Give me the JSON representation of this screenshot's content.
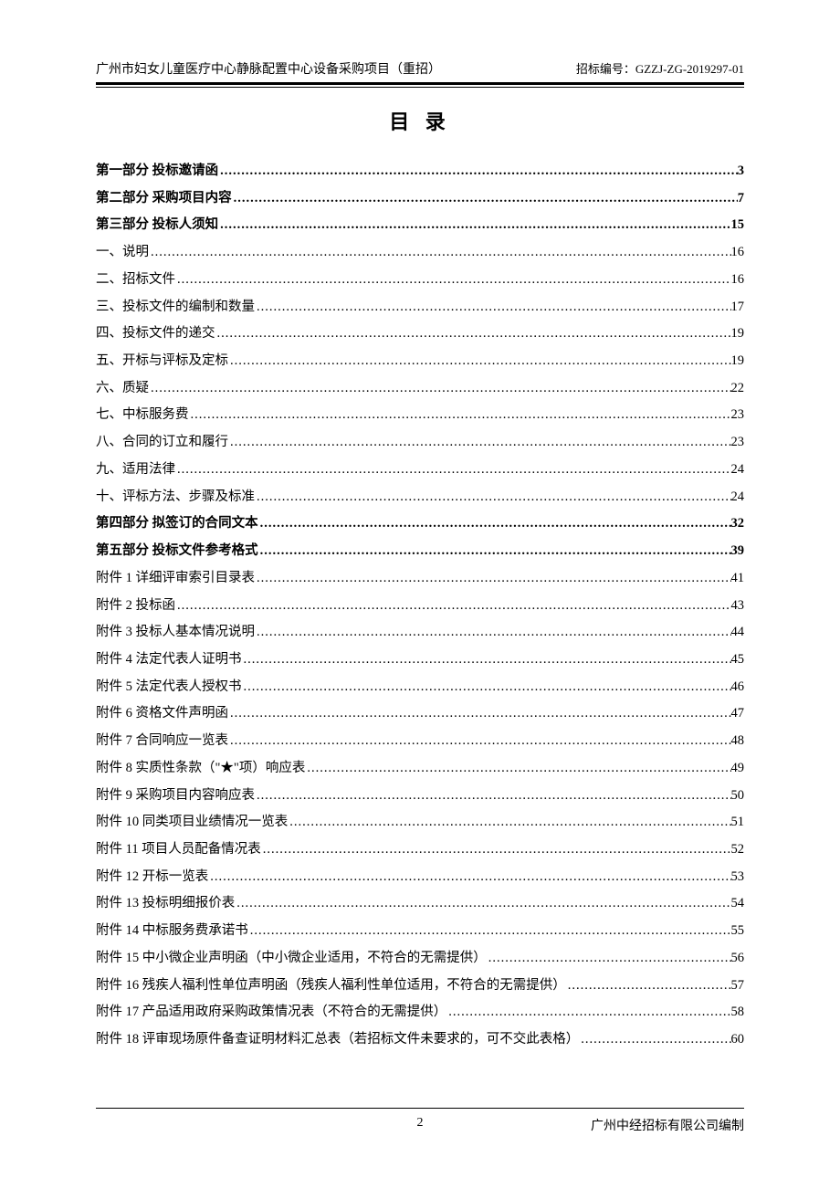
{
  "header": {
    "left": "广州市妇女儿童医疗中心静脉配置中心设备采购项目（重招）",
    "right": "招标编号：GZZJ-ZG-2019297-01"
  },
  "title": "目 录",
  "toc": {
    "entries": [
      {
        "label": "第一部分 投标邀请函",
        "page": "3",
        "bold": true
      },
      {
        "label": "第二部分 采购项目内容",
        "page": "7",
        "bold": true
      },
      {
        "label": "第三部分 投标人须知",
        "page": "15",
        "bold": true
      },
      {
        "label": "一、说明",
        "page": "16",
        "bold": false
      },
      {
        "label": "二、招标文件",
        "page": "16",
        "bold": false
      },
      {
        "label": "三、投标文件的编制和数量",
        "page": "17",
        "bold": false
      },
      {
        "label": "四、投标文件的递交",
        "page": "19",
        "bold": false
      },
      {
        "label": "五、开标与评标及定标",
        "page": "19",
        "bold": false
      },
      {
        "label": "六、质疑",
        "page": "22",
        "bold": false
      },
      {
        "label": "七、中标服务费",
        "page": "23",
        "bold": false
      },
      {
        "label": "八、合同的订立和履行",
        "page": "23",
        "bold": false
      },
      {
        "label": "九、适用法律",
        "page": "24",
        "bold": false
      },
      {
        "label": "十、评标方法、步骤及标准",
        "page": "24",
        "bold": false
      },
      {
        "label": "第四部分 拟签订的合同文本",
        "page": "32",
        "bold": true
      },
      {
        "label": "第五部分 投标文件参考格式",
        "page": "39",
        "bold": true
      },
      {
        "label": "附件 1  详细评审索引目录表",
        "page": "41",
        "bold": false
      },
      {
        "label": "附件 2  投标函",
        "page": "43",
        "bold": false
      },
      {
        "label": "附件 3  投标人基本情况说明",
        "page": "44",
        "bold": false
      },
      {
        "label": "附件 4  法定代表人证明书",
        "page": "45",
        "bold": false
      },
      {
        "label": "附件 5  法定代表人授权书",
        "page": "46",
        "bold": false
      },
      {
        "label": "附件 6  资格文件声明函",
        "page": "47",
        "bold": false
      },
      {
        "label": "附件 7  合同响应一览表",
        "page": "48",
        "bold": false
      },
      {
        "label": "附件 8  实质性条款（\"★\"项）响应表",
        "page": "49",
        "bold": false
      },
      {
        "label": "附件 9  采购项目内容响应表",
        "page": "50",
        "bold": false
      },
      {
        "label": "附件 10  同类项目业绩情况一览表",
        "page": "51",
        "bold": false
      },
      {
        "label": "附件 11  项目人员配备情况表",
        "page": "52",
        "bold": false
      },
      {
        "label": "附件 12  开标一览表",
        "page": "53",
        "bold": false
      },
      {
        "label": "附件 13  投标明细报价表",
        "page": "54",
        "bold": false
      },
      {
        "label": "附件 14  中标服务费承诺书",
        "page": "55",
        "bold": false
      },
      {
        "label": "附件 15  中小微企业声明函（中小微企业适用，不符合的无需提供）",
        "page": "56",
        "bold": false
      },
      {
        "label": "附件 16  残疾人福利性单位声明函（残疾人福利性单位适用，不符合的无需提供）",
        "page": "57",
        "bold": false
      },
      {
        "label": "附件 17  产品适用政府采购政策情况表（不符合的无需提供）",
        "page": "58",
        "bold": false
      },
      {
        "label": "附件 18  评审现场原件备查证明材料汇总表（若招标文件未要求的，可不交此表格）",
        "page": "60",
        "bold": false
      }
    ]
  },
  "footer": {
    "page_number": "2",
    "right": "广州中经招标有限公司编制"
  },
  "style": {
    "text_color": "#000000",
    "background_color": "#ffffff",
    "title_fontsize": 22,
    "body_fontsize": 14.5,
    "header_fontsize": 14,
    "footer_fontsize": 14,
    "line_height": 2.05
  }
}
